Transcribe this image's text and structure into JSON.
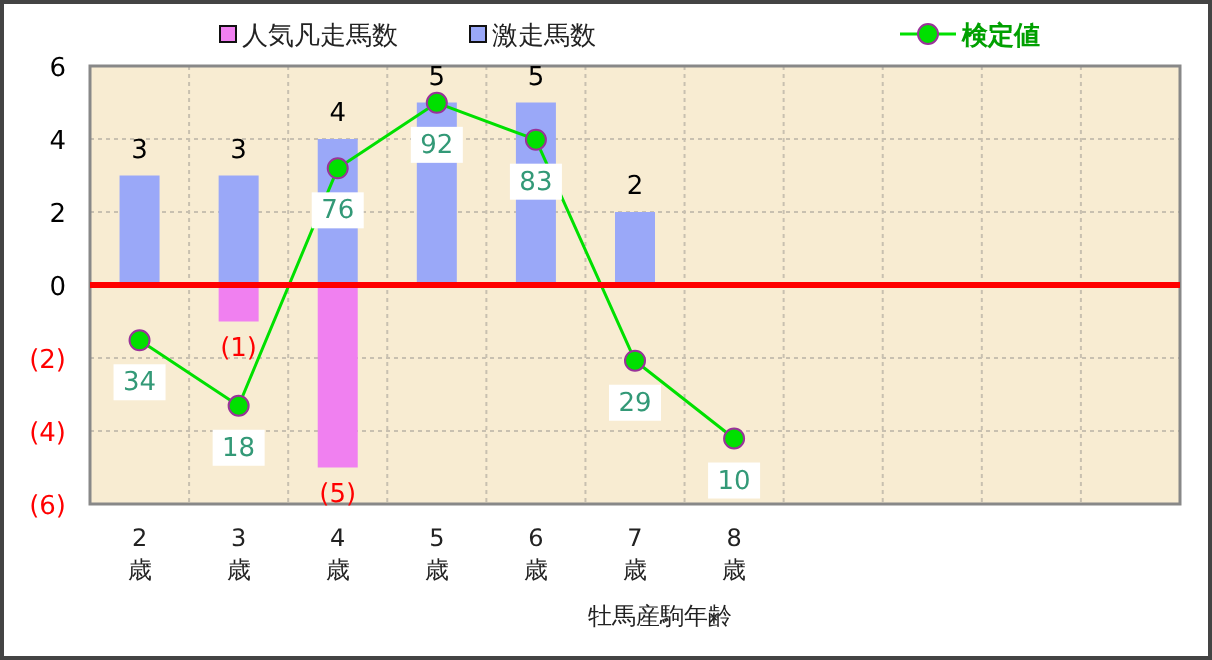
{
  "chart_data": {
    "type": "bar",
    "categories": [
      "2歳",
      "3歳",
      "4歳",
      "5歳",
      "6歳",
      "7歳",
      "8歳",
      null,
      null,
      null,
      null
    ],
    "xlabel": "牡馬産駒年齢",
    "series": [
      {
        "name": "人気凡走馬数",
        "color": "#f080f0",
        "values": [
          null,
          -1,
          -5,
          null,
          null,
          null,
          null,
          null,
          null,
          null,
          null
        ],
        "value_labels": [
          null,
          "(1)",
          "(5)",
          null,
          null,
          null,
          null,
          null,
          null,
          null,
          null
        ]
      },
      {
        "name": "激走馬数",
        "color": "#9aa8f8",
        "values": [
          3,
          3,
          4,
          5,
          5,
          2,
          null,
          null,
          null,
          null,
          null
        ],
        "value_labels": [
          "3",
          "3",
          "4",
          "5",
          "5",
          "2",
          null,
          null,
          null,
          null,
          null
        ]
      },
      {
        "name": "検定値",
        "type": "line",
        "axis": "y2",
        "color": "#00e000",
        "marker": "circle",
        "values": [
          34,
          18,
          76,
          92,
          83,
          29,
          10,
          null,
          null,
          null,
          null
        ],
        "value_labels": [
          "34",
          "18",
          "76",
          "92",
          "83",
          "29",
          "10",
          null,
          null,
          null,
          null
        ]
      }
    ],
    "ylim": [
      -6,
      6
    ],
    "yticks": [
      6,
      4,
      2,
      0,
      {
        "value": -2,
        "label": "(2)"
      },
      {
        "value": -4,
        "label": "(4)"
      },
      {
        "value": -6,
        "label": "(6)"
      }
    ],
    "y2lim": [
      -6,
      101
    ],
    "ref_lines": [
      {
        "axis": "y",
        "value": 0,
        "color": "#ff0000"
      }
    ],
    "grid": true,
    "legend": "top"
  }
}
